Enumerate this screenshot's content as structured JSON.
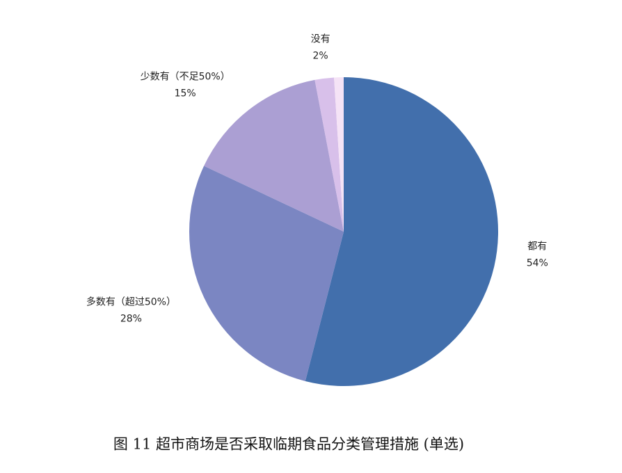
{
  "chart_data": {
    "type": "pie",
    "title": "图 11 超市商场是否采取临期食品分类管理措施 (单选)",
    "categories": [
      "都有",
      "多数有（超过50%）",
      "少数有（不足50%）",
      "没有",
      null
    ],
    "values": [
      54,
      28,
      15,
      2,
      1
    ],
    "value_labels": [
      "54%",
      "28%",
      "15%",
      "2%",
      null
    ],
    "colors": [
      "#426fac",
      "#7b86c2",
      "#ab9fd3",
      "#d8c0ea",
      "#f5e3f6"
    ]
  }
}
